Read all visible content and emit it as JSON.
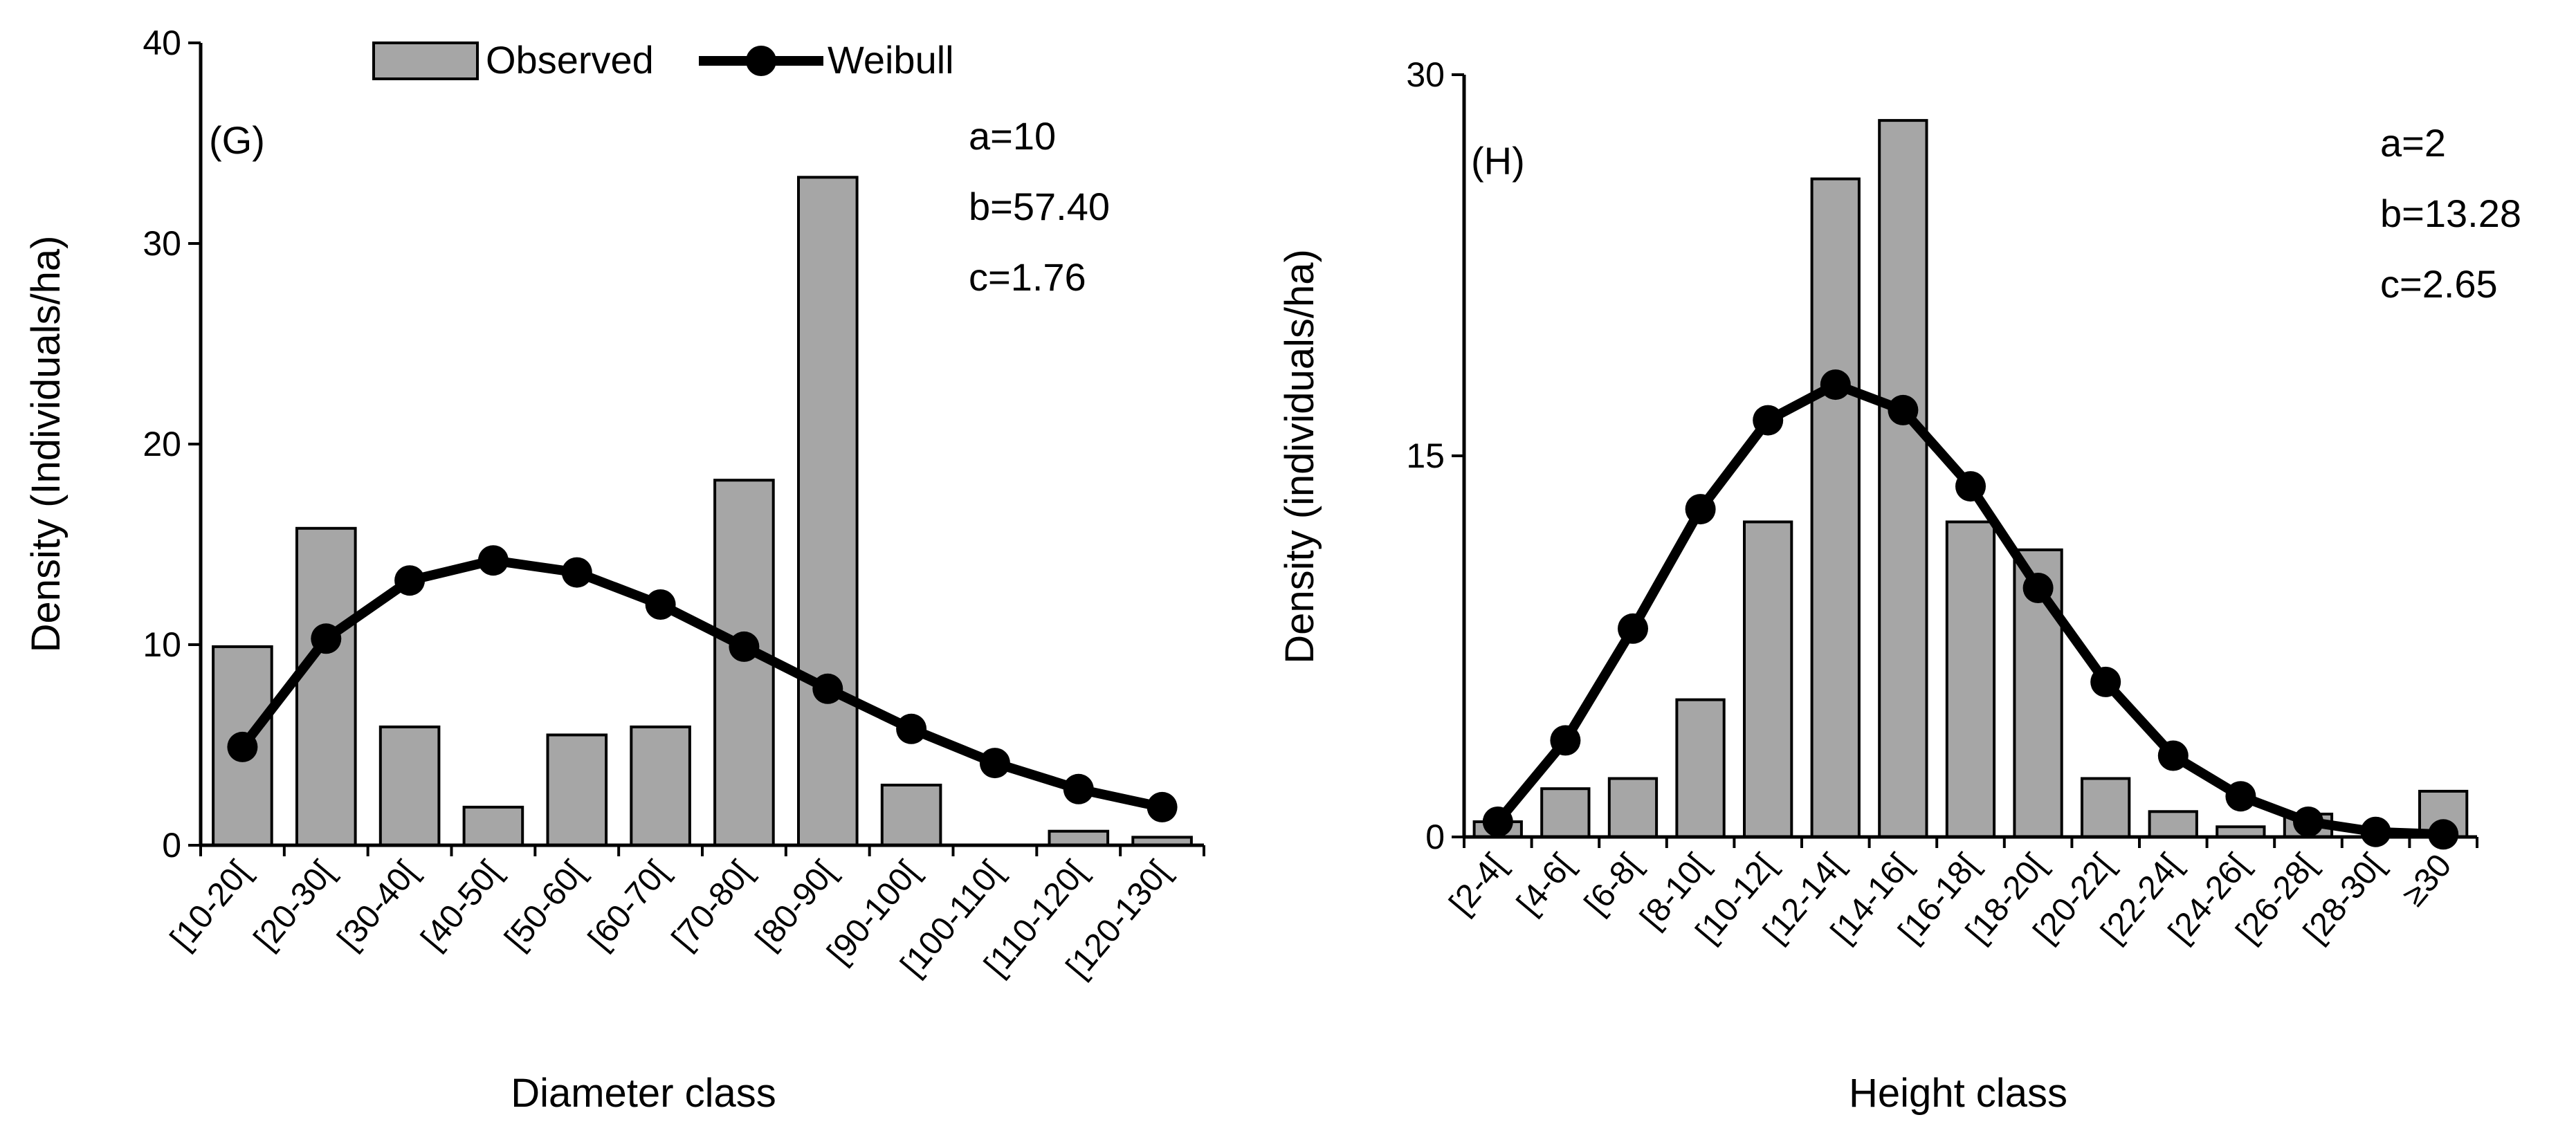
{
  "colors": {
    "bar_fill": "#a6a6a6",
    "bar_stroke": "#000000",
    "line": "#000000",
    "marker": "#000000"
  },
  "legend": {
    "observed_label": "Observed",
    "weibull_label": "Weibull"
  },
  "chart_data": [
    {
      "type": "bar",
      "panel_label": "(G)",
      "title": "",
      "xlabel": "Diameter class",
      "ylabel": "Density (Individuals/ha)",
      "ylim": [
        0,
        40
      ],
      "yticks": [
        "0",
        "10",
        "20",
        "30",
        "40"
      ],
      "categories": [
        "[10-20[",
        "[20-30[",
        "[30-40[",
        "[40-50[",
        "[50-60[",
        "[60-70[",
        "[70-80[",
        "[80-90[",
        "[90-100[",
        "[100-110[",
        "[110-120[",
        "[120-130["
      ],
      "series": [
        {
          "name": "Observed",
          "kind": "bar",
          "values": [
            9.9,
            15.8,
            5.9,
            1.9,
            5.5,
            5.9,
            18.2,
            33.3,
            3.0,
            0.0,
            0.7,
            0.4
          ]
        },
        {
          "name": "Weibull",
          "kind": "line",
          "values": [
            4.9,
            10.3,
            13.2,
            14.2,
            13.6,
            12.0,
            9.9,
            7.8,
            5.8,
            4.1,
            2.8,
            1.9
          ]
        }
      ],
      "params": [
        "a=10",
        "b=57.40",
        "c=1.76"
      ]
    },
    {
      "type": "bar",
      "panel_label": "(H)",
      "title": "",
      "xlabel": "Height class",
      "ylabel": "Density (individuals/ha)",
      "ylim": [
        0,
        30
      ],
      "yticks": [
        "0",
        "15",
        "30"
      ],
      "categories": [
        "[2-4[",
        "[4-6[",
        "[6-8[",
        "[8-10[",
        "[10-12[",
        "[12-14[",
        "[14-16[",
        "[16-18[",
        "[18-20[",
        "[20-22[",
        "[22-24[",
        "[24-26[",
        "[26-28[",
        "[28-30[",
        "≥30"
      ],
      "series": [
        {
          "name": "Observed",
          "kind": "bar",
          "values": [
            0.6,
            1.9,
            2.3,
            5.4,
            12.4,
            25.9,
            28.2,
            12.4,
            11.3,
            2.3,
            1.0,
            0.4,
            0.9,
            0.0,
            1.8
          ]
        },
        {
          "name": "Weibull",
          "kind": "line",
          "values": [
            0.6,
            3.8,
            8.2,
            12.9,
            16.4,
            17.8,
            16.8,
            13.8,
            9.8,
            6.1,
            3.2,
            1.6,
            0.6,
            0.2,
            0.1
          ]
        }
      ],
      "params": [
        "a=2",
        "b=13.28",
        "c=2.65"
      ]
    }
  ]
}
